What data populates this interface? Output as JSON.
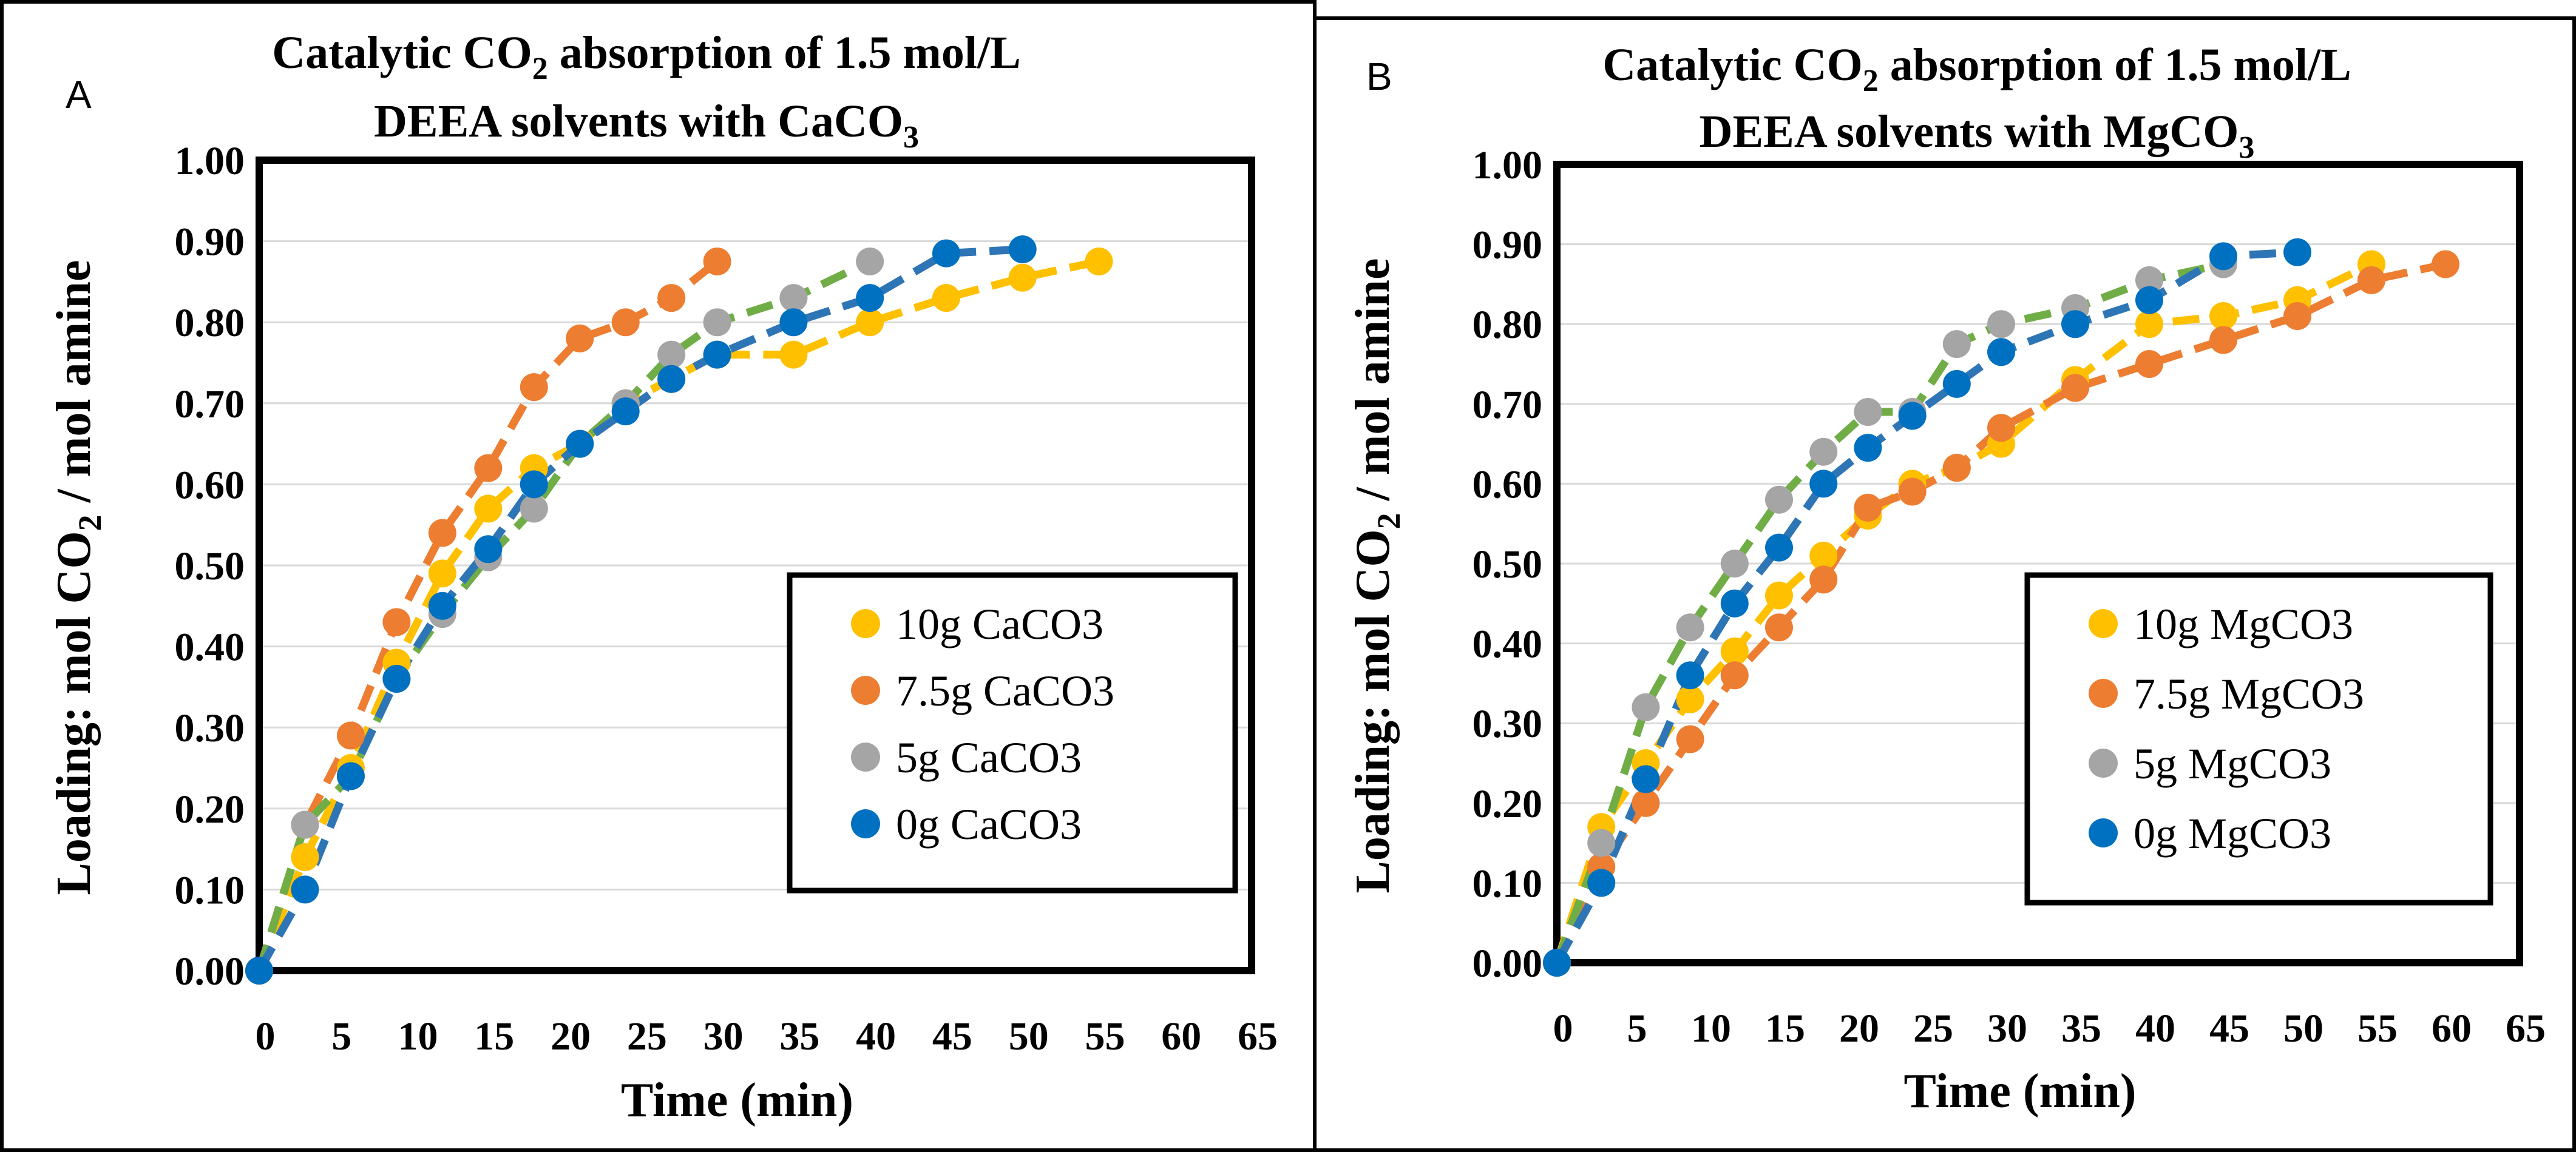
{
  "chart_data": [
    {
      "type": "scatter",
      "panel_label": "A",
      "title": [
        "Catalytic CO",
        "2",
        " absorption of 1.5 mol/L",
        "DEEA solvents with CaCO",
        "3"
      ],
      "xlabel": "Time (min)",
      "ylabel": [
        "Loading: mol CO",
        "2",
        " / mol amine"
      ],
      "xlim": [
        0,
        65
      ],
      "ylim": [
        0,
        1
      ],
      "xticks": [
        "0",
        "5",
        "10",
        "15",
        "20",
        "25",
        "30",
        "35",
        "40",
        "45",
        "50",
        "55",
        "60",
        "65"
      ],
      "yticks": [
        "0.00",
        "0.10",
        "0.20",
        "0.30",
        "0.40",
        "0.50",
        "0.60",
        "0.70",
        "0.80",
        "0.90",
        "1.00"
      ],
      "legend_position": "right-middle",
      "series": [
        {
          "name": "10g CaCO3",
          "color": "#FFC000",
          "x": [
            0,
            3,
            6,
            9,
            12,
            15,
            18,
            21,
            24,
            27,
            30,
            35,
            40,
            45,
            50,
            55
          ],
          "y": [
            0,
            0.14,
            0.25,
            0.38,
            0.49,
            0.57,
            0.62,
            0.65,
            0.7,
            0.73,
            0.76,
            0.76,
            0.8,
            0.83,
            0.855,
            0.875
          ]
        },
        {
          "name": "7.5g CaCO3",
          "color": "#ED7D31",
          "x": [
            0,
            3,
            6,
            9,
            12,
            15,
            18,
            21,
            24,
            27,
            30
          ],
          "y": [
            0,
            0.18,
            0.29,
            0.43,
            0.54,
            0.62,
            0.72,
            0.78,
            0.8,
            0.83,
            0.875
          ]
        },
        {
          "name": "5g CaCO3",
          "color": "#70AD47",
          "marker_color": "#A5A5A5",
          "x": [
            0,
            3,
            6,
            9,
            12,
            15,
            18,
            21,
            24,
            27,
            30,
            35,
            40
          ],
          "y": [
            0,
            0.18,
            0.24,
            0.36,
            0.44,
            0.51,
            0.57,
            0.65,
            0.7,
            0.76,
            0.8,
            0.83,
            0.875
          ]
        },
        {
          "name": "0g CaCO3",
          "color": "#2E75B6",
          "marker_color": "#0070C0",
          "x": [
            0,
            3,
            6,
            9,
            12,
            15,
            18,
            21,
            24,
            27,
            30,
            35,
            40,
            45,
            50
          ],
          "y": [
            0,
            0.1,
            0.24,
            0.36,
            0.45,
            0.52,
            0.6,
            0.65,
            0.69,
            0.73,
            0.76,
            0.8,
            0.83,
            0.885,
            0.89
          ]
        }
      ]
    },
    {
      "type": "scatter",
      "panel_label": "B",
      "title": [
        "Catalytic CO",
        "2",
        " absorption of 1.5 mol/L",
        "DEEA solvents with MgCO",
        "3"
      ],
      "xlabel": "Time (min)",
      "ylabel": [
        "Loading: mol CO",
        "2",
        " / mol amine"
      ],
      "xlim": [
        0,
        65
      ],
      "ylim": [
        0,
        1
      ],
      "xticks": [
        "0",
        "5",
        "10",
        "15",
        "20",
        "25",
        "30",
        "35",
        "40",
        "45",
        "50",
        "55",
        "60",
        "65"
      ],
      "yticks": [
        "0.00",
        "0.10",
        "0.20",
        "0.30",
        "0.40",
        "0.50",
        "0.60",
        "0.70",
        "0.80",
        "0.90",
        "1.00"
      ],
      "legend_position": "right-middle",
      "series": [
        {
          "name": "10g MgCO3",
          "color": "#FFC000",
          "x": [
            0,
            3,
            6,
            9,
            12,
            15,
            18,
            21,
            24,
            27,
            30,
            35,
            40,
            45,
            50,
            55
          ],
          "y": [
            0,
            0.17,
            0.25,
            0.33,
            0.39,
            0.46,
            0.51,
            0.56,
            0.6,
            0.62,
            0.65,
            0.73,
            0.8,
            0.81,
            0.83,
            0.875
          ]
        },
        {
          "name": "7.5g MgCO3",
          "color": "#ED7D31",
          "x": [
            0,
            3,
            6,
            9,
            12,
            15,
            18,
            21,
            24,
            27,
            30,
            35,
            40,
            45,
            50,
            55,
            60
          ],
          "y": [
            0,
            0.12,
            0.2,
            0.28,
            0.36,
            0.42,
            0.48,
            0.57,
            0.59,
            0.62,
            0.67,
            0.72,
            0.75,
            0.78,
            0.81,
            0.855,
            0.875
          ]
        },
        {
          "name": "5g MgCO3",
          "color": "#70AD47",
          "marker_color": "#A5A5A5",
          "x": [
            0,
            3,
            6,
            9,
            12,
            15,
            18,
            21,
            24,
            27,
            30,
            35,
            40,
            45
          ],
          "y": [
            0,
            0.15,
            0.32,
            0.42,
            0.5,
            0.58,
            0.64,
            0.69,
            0.69,
            0.775,
            0.8,
            0.82,
            0.855,
            0.875
          ]
        },
        {
          "name": "0g MgCO3",
          "color": "#2E75B6",
          "marker_color": "#0070C0",
          "x": [
            0,
            3,
            6,
            9,
            12,
            15,
            18,
            21,
            24,
            27,
            30,
            35,
            40,
            45,
            50
          ],
          "y": [
            0,
            0.1,
            0.23,
            0.36,
            0.45,
            0.52,
            0.6,
            0.645,
            0.685,
            0.725,
            0.765,
            0.8,
            0.83,
            0.885,
            0.89
          ]
        }
      ]
    }
  ]
}
